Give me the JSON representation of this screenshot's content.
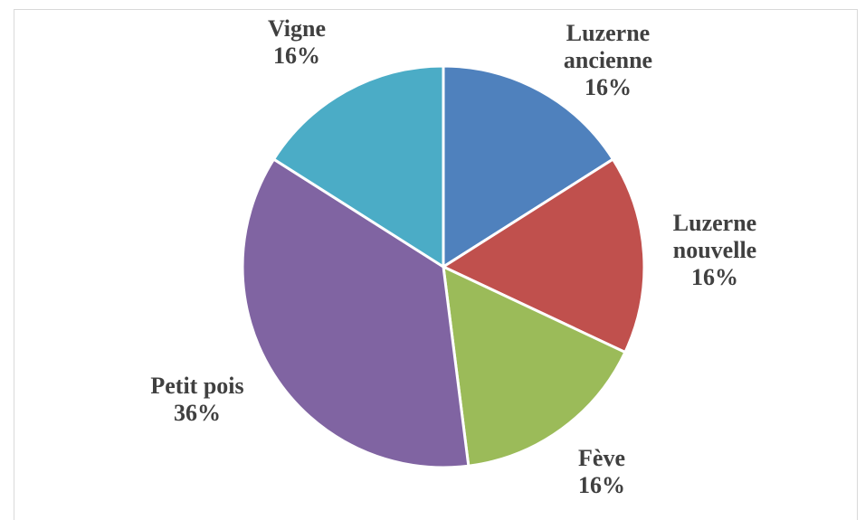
{
  "chart_data": {
    "type": "pie",
    "categories": [
      "Luzerne ancienne",
      "Luzerne nouvelle",
      "Fève",
      "Petit pois",
      "Vigne"
    ],
    "values": [
      16,
      16,
      16,
      36,
      16
    ],
    "value_labels": [
      "16%",
      "16%",
      "16%",
      "36%",
      "16%"
    ],
    "colors": [
      "#4f81bd",
      "#c0504d",
      "#9bbb59",
      "#8064a2",
      "#4bacc6"
    ]
  }
}
